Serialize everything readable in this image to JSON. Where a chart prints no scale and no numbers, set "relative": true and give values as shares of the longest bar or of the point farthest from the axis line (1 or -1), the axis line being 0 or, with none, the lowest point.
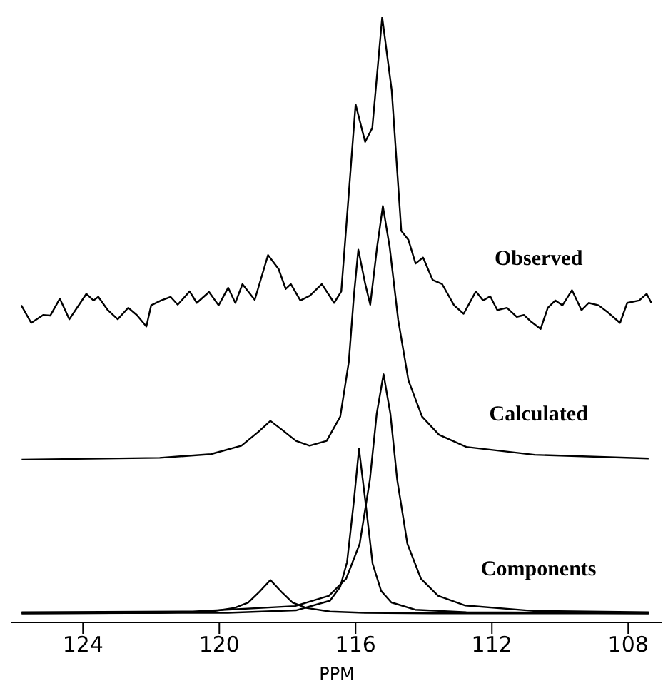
{
  "chart_data": {
    "type": "line",
    "relative": true,
    "xlabel": "PPM",
    "xlim": [
      126.1,
      107.0
    ],
    "xticks": [
      124,
      120,
      116,
      112,
      108
    ],
    "series": [
      {
        "name": "Observed",
        "color": "#000000",
        "x": [
          125.81,
          125.52,
          125.17,
          124.96,
          124.68,
          124.4,
          123.9,
          123.69,
          123.55,
          123.27,
          122.98,
          122.67,
          122.42,
          122.14,
          122.0,
          121.71,
          121.43,
          121.22,
          120.87,
          120.66,
          120.3,
          120.02,
          119.74,
          119.53,
          119.32,
          118.96,
          118.57,
          118.26,
          118.05,
          117.9,
          117.62,
          117.34,
          116.99,
          116.63,
          116.42,
          116.21,
          116.0,
          115.72,
          115.51,
          115.22,
          114.94,
          114.66,
          114.45,
          114.24,
          114.02,
          113.74,
          113.46,
          113.11,
          112.83,
          112.47,
          112.26,
          112.05,
          111.84,
          111.56,
          111.27,
          111.06,
          110.85,
          110.57,
          110.36,
          110.14,
          109.93,
          109.65,
          109.37,
          109.16,
          108.87,
          108.59,
          108.24,
          108.03,
          107.68,
          107.46,
          107.32
        ],
        "values": [
          0.524,
          0.495,
          0.508,
          0.507,
          0.535,
          0.501,
          0.543,
          0.532,
          0.538,
          0.516,
          0.501,
          0.52,
          0.508,
          0.489,
          0.524,
          0.532,
          0.538,
          0.525,
          0.547,
          0.528,
          0.546,
          0.524,
          0.553,
          0.528,
          0.559,
          0.533,
          0.607,
          0.584,
          0.551,
          0.559,
          0.532,
          0.54,
          0.559,
          0.528,
          0.547,
          0.701,
          0.856,
          0.794,
          0.817,
          1,
          0.879,
          0.647,
          0.632,
          0.593,
          0.603,
          0.566,
          0.559,
          0.524,
          0.51,
          0.547,
          0.532,
          0.539,
          0.516,
          0.52,
          0.505,
          0.508,
          0.497,
          0.485,
          0.52,
          0.532,
          0.524,
          0.549,
          0.516,
          0.528,
          0.524,
          0.512,
          0.495,
          0.528,
          0.532,
          0.543,
          0.528
        ]
      },
      {
        "name": "Calculated",
        "color": "#000000",
        "x": [
          125.8,
          121.75,
          120.25,
          119.35,
          118.85,
          118.5,
          118.15,
          117.75,
          117.35,
          116.85,
          116.45,
          116.2,
          116.05,
          115.92,
          115.72,
          115.57,
          115.37,
          115.2,
          115.0,
          114.75,
          114.45,
          114.05,
          113.55,
          112.75,
          110.75,
          107.4
        ],
        "values": [
          0.269,
          0.272,
          0.278,
          0.292,
          0.315,
          0.333,
          0.318,
          0.3,
          0.292,
          0.3,
          0.34,
          0.43,
          0.54,
          0.616,
          0.56,
          0.525,
          0.62,
          0.688,
          0.62,
          0.5,
          0.4,
          0.34,
          0.31,
          0.29,
          0.277,
          0.271
        ]
      },
      {
        "name": "Components",
        "color": "#000000",
        "x": [
          125.8,
          121.75,
          120.25,
          119.55,
          119.15,
          118.85,
          118.5,
          118.15,
          117.85,
          117.45,
          116.75,
          115.75,
          113.75,
          107.4
        ],
        "values": [
          0.015,
          0.016,
          0.018,
          0.024,
          0.033,
          0.049,
          0.07,
          0.049,
          0.033,
          0.024,
          0.018,
          0.016,
          0.015,
          0.015
        ]
      },
      {
        "color": "#000000",
        "x": [
          125.8,
          119.75,
          117.75,
          116.75,
          116.45,
          116.25,
          116.05,
          115.9,
          115.7,
          115.5,
          115.25,
          114.95,
          114.25,
          112.75,
          107.4
        ],
        "values": [
          0.015,
          0.016,
          0.02,
          0.036,
          0.059,
          0.1,
          0.201,
          0.287,
          0.194,
          0.097,
          0.052,
          0.033,
          0.021,
          0.017,
          0.015
        ]
      },
      {
        "color": "#000000",
        "x": [
          125.8,
          120.78,
          117.78,
          116.78,
          116.28,
          115.88,
          115.58,
          115.38,
          115.18,
          114.98,
          114.78,
          114.48,
          114.08,
          113.58,
          112.78,
          110.78,
          107.4
        ],
        "values": [
          0.017,
          0.018,
          0.027,
          0.044,
          0.072,
          0.13,
          0.236,
          0.345,
          0.41,
          0.345,
          0.236,
          0.13,
          0.072,
          0.044,
          0.028,
          0.019,
          0.017
        ]
      }
    ]
  }
}
